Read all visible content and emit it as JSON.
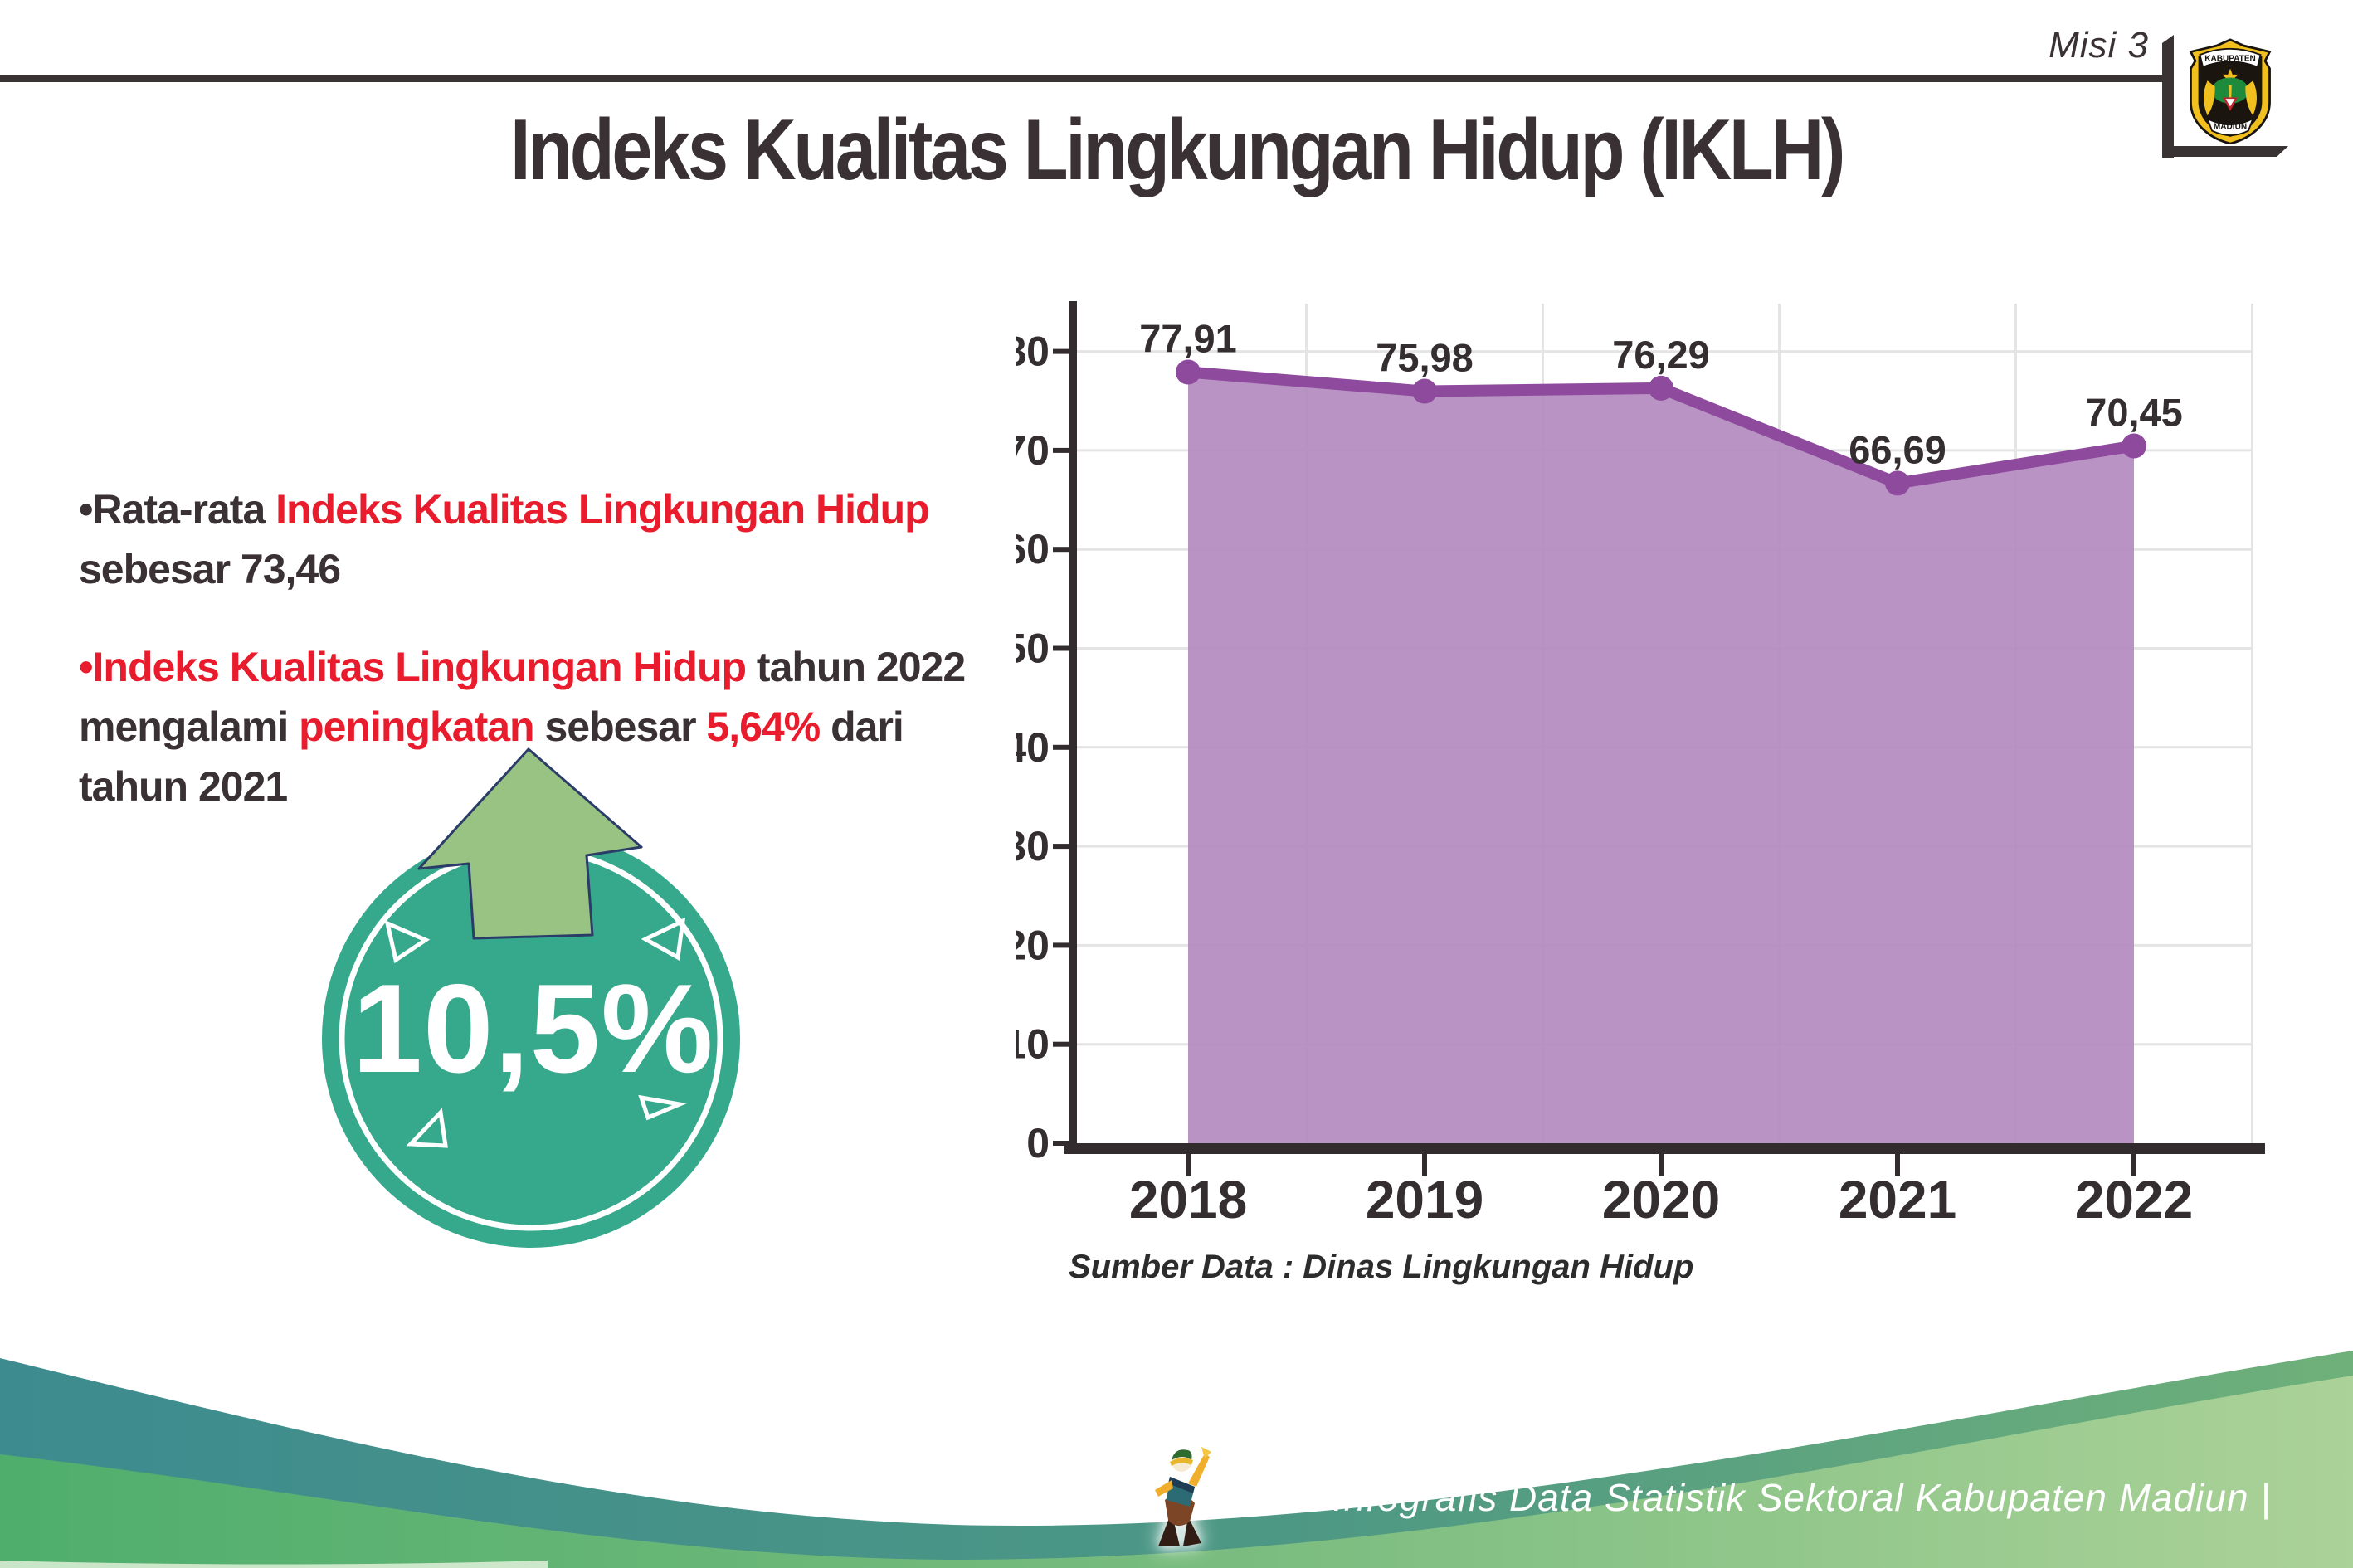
{
  "header": {
    "misi": "Misi 3",
    "title": "Indeks Kualitas Lingkungan Hidup (IKLH)"
  },
  "logo": {
    "top_text": "KABUPATEN",
    "bottom_text": "MADIUN"
  },
  "bullets": {
    "b1": [
      {
        "t": "•Rata-rata ",
        "c": "dark"
      },
      {
        "t": "Indeks Kualitas Lingkungan Hidup",
        "c": "red"
      },
      {
        "t": " sebesar 73,46",
        "c": "dark"
      }
    ],
    "b2": [
      {
        "t": "•",
        "c": "red"
      },
      {
        "t": "Indeks Kualitas Lingkungan Hidup",
        "c": "red"
      },
      {
        "t": " tahun 2022 mengalami ",
        "c": "dark"
      },
      {
        "t": "peningkatan",
        "c": "red"
      },
      {
        "t": " sebesar ",
        "c": "dark"
      },
      {
        "t": "5,64%",
        "c": "red"
      },
      {
        "t": " dari tahun 2021",
        "c": "dark"
      }
    ]
  },
  "badge": {
    "value": "10,5%",
    "arrow_icon": "arrow-up-icon"
  },
  "chart_data": {
    "type": "area",
    "title": "",
    "xlabel": "",
    "ylabel": "",
    "categories": [
      "2018",
      "2019",
      "2020",
      "2021",
      "2022"
    ],
    "values": [
      77.91,
      75.98,
      76.29,
      66.69,
      70.45
    ],
    "value_labels": [
      "77,91",
      "75,98",
      "76,29",
      "66,69",
      "70,45"
    ],
    "ylim": [
      0,
      80
    ],
    "ytick_step": 10,
    "grid": true,
    "legend": "none",
    "source": "Sumber Data : Dinas Lingkungan Hidup",
    "colors": {
      "fill": "#b287bf",
      "line": "#8e4a9d",
      "marker": "#8e4a9d",
      "axis": "#332c2f",
      "grid": "#e4e4e4",
      "label": "#352e31"
    }
  },
  "footer": {
    "text": "Media Infografis Data Statistik Sektoral Kabupaten Madiun |"
  },
  "colors": {
    "accent_red": "#e81c2c",
    "text_dark": "#3a3134",
    "badge_teal": "#36a98c",
    "arrow_green": "#98c383",
    "footer_teal": "#3d8b8f",
    "footer_green": "#96c48b"
  }
}
